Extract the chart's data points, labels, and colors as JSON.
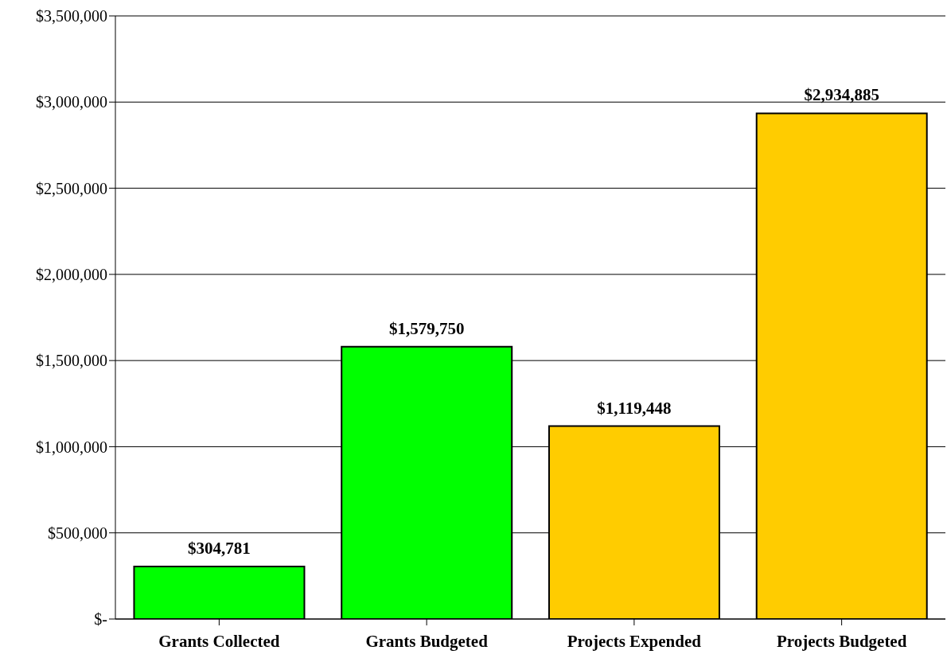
{
  "chart_data": {
    "type": "bar",
    "categories": [
      "Grants Collected",
      "Grants Budgeted",
      "Projects Expended",
      "Projects Budgeted"
    ],
    "values": [
      304781,
      1579750,
      1119448,
      2934885
    ],
    "colors": [
      "#00ff00",
      "#00ff00",
      "#ffcc00",
      "#ffcc00"
    ],
    "value_labels": [
      "$304,781",
      "$1,579,750",
      "$1,119,448",
      "$2,934,885"
    ],
    "ylim": [
      0,
      3500000
    ],
    "yticks": [
      {
        "value": 0,
        "label": "$-"
      },
      {
        "value": 500000,
        "label": "$500,000"
      },
      {
        "value": 1000000,
        "label": "$1,000,000"
      },
      {
        "value": 1500000,
        "label": "$1,500,000"
      },
      {
        "value": 2000000,
        "label": "$2,000,000"
      },
      {
        "value": 2500000,
        "label": "$2,500,000"
      },
      {
        "value": 3000000,
        "label": "$3,000,000"
      },
      {
        "value": 3500000,
        "label": "$3,500,000"
      }
    ],
    "grid": "y"
  }
}
